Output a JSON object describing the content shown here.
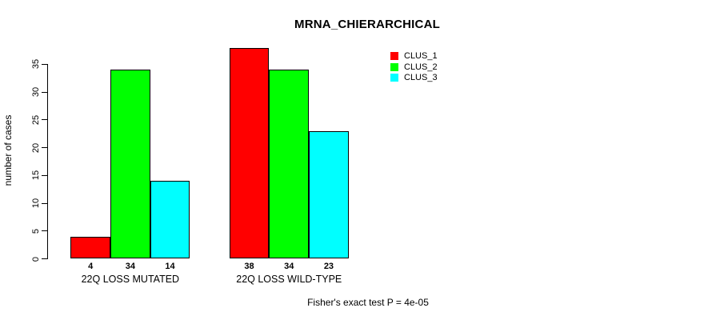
{
  "chart_data": {
    "type": "bar",
    "title": "MRNA_CHIERARCHICAL",
    "ylabel": "number of cases",
    "xlabel": "",
    "categories": [
      "22Q LOSS MUTATED",
      "22Q LOSS WILD-TYPE"
    ],
    "series": [
      {
        "name": "CLUS_1",
        "color": "#ff0000",
        "values": [
          4,
          38
        ]
      },
      {
        "name": "CLUS_2",
        "color": "#00ff00",
        "values": [
          34,
          34
        ]
      },
      {
        "name": "CLUS_3",
        "color": "#00ffff",
        "values": [
          14,
          23
        ]
      }
    ],
    "bar_value_labels": [
      [
        4,
        34,
        14
      ],
      [
        38,
        34,
        23
      ]
    ],
    "yticks": [
      0,
      5,
      10,
      15,
      20,
      25,
      30,
      35
    ],
    "ylim": [
      0,
      38
    ],
    "grid": false,
    "legend_position": "top-right",
    "annotation": "Fisher's exact test P = 4e-05"
  },
  "legend": {
    "entries": [
      {
        "label": "CLUS_1"
      },
      {
        "label": "CLUS_2"
      },
      {
        "label": "CLUS_3"
      }
    ]
  }
}
